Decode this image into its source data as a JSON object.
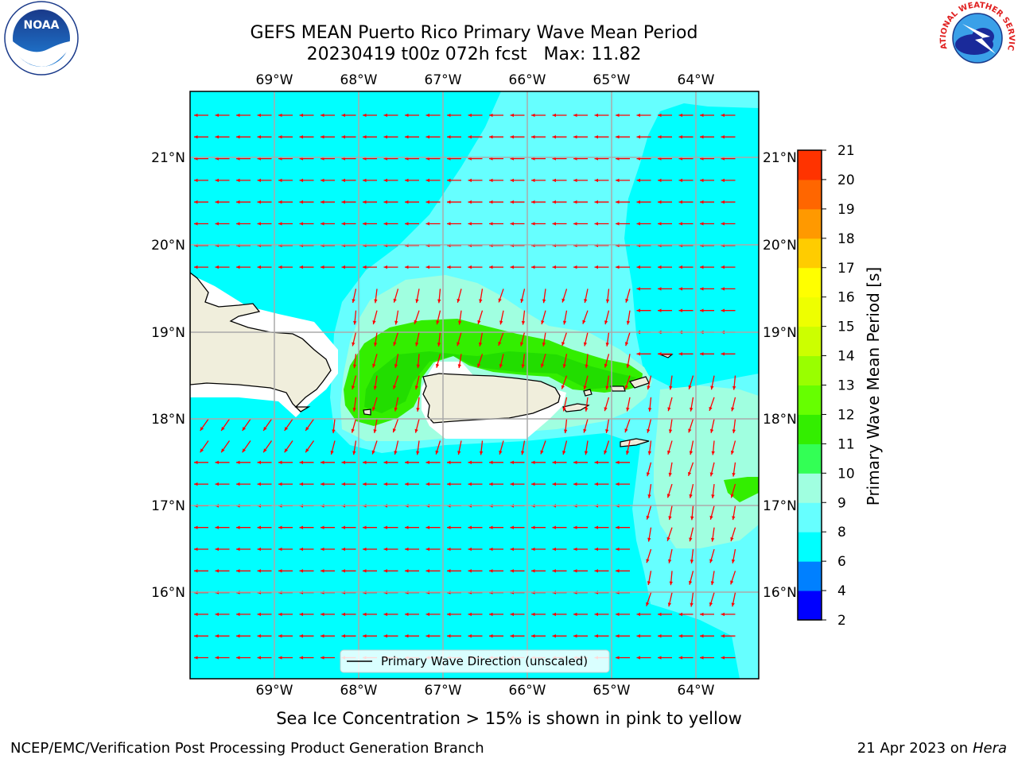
{
  "title_line1": "GEFS MEAN Puerto Rico Primary Wave Mean Period",
  "title_line2": "20230419 t00z 072h fcst   Max: 11.82",
  "lon_labels": [
    "69°W",
    "68°W",
    "67°W",
    "66°W",
    "65°W",
    "64°W"
  ],
  "lat_labels": [
    "21°N",
    "20°N",
    "19°N",
    "18°N",
    "17°N",
    "16°N"
  ],
  "legend_label": "Primary Wave Direction (unscaled)",
  "note": "Sea Ice Concentration > 15% is shown in pink to yellow",
  "footer_left": "NCEP/EMC/Verification Post Processing Product Generation Branch",
  "footer_date": "21 Apr 2023 on",
  "footer_host": "Hera",
  "colorbar": {
    "label": "Primary Wave Mean Period [s]",
    "ticks": [
      "2",
      "4",
      "6",
      "8",
      "9",
      "10",
      "11",
      "12",
      "13",
      "14",
      "15",
      "16",
      "17",
      "18",
      "19",
      "20",
      "21"
    ],
    "colors": [
      "#0000ff",
      "#0080ff",
      "#00ffff",
      "#66ffff",
      "#a0ffe0",
      "#33ff55",
      "#33ee00",
      "#66ff00",
      "#99ff00",
      "#ccff00",
      "#eeff00",
      "#ffff00",
      "#ffcc00",
      "#ff9900",
      "#ff6600",
      "#ff3300",
      "#ff0000"
    ]
  },
  "logos": {
    "noaa": "NOAA",
    "nws": "NATIONAL WEATHER SERVICE"
  },
  "colors": {
    "ocean": "#00ffff",
    "band": "#66ffff",
    "pale": "#a0ffe0",
    "green": "#33ee00",
    "land": "#f0eedc",
    "arrow": "#ff0000"
  }
}
